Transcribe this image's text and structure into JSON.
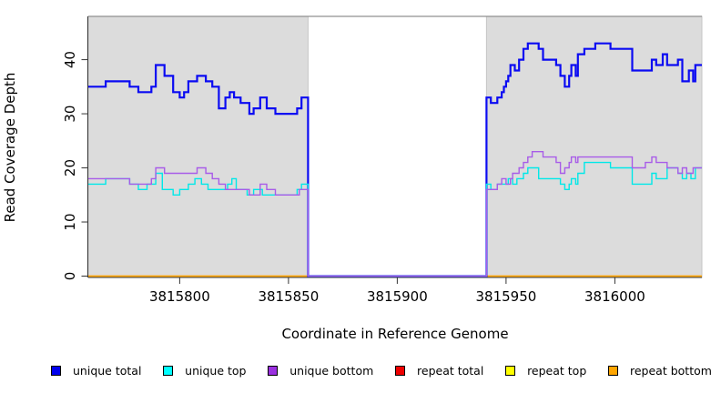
{
  "chart_data": {
    "type": "line",
    "subtype": "step-coverage-plot",
    "title": "",
    "xlabel": "Coordinate in Reference Genome",
    "ylabel": "Read Coverage Depth",
    "xlim": [
      3815758,
      3816040
    ],
    "ylim": [
      0,
      48
    ],
    "xticks": [
      3815800,
      3815850,
      3815900,
      3815950,
      3816000
    ],
    "yticks": [
      0,
      10,
      20,
      30,
      40
    ],
    "grid": false,
    "legend_position": "bottom",
    "shaded_regions": [
      {
        "x_from": 3815758,
        "x_to": 3815859,
        "color": "#DCDCDC"
      },
      {
        "x_from": 3815941,
        "x_to": 3816040,
        "color": "#DCDCDC"
      }
    ],
    "gap_region": {
      "x_from": 3815859,
      "x_to": 3815941,
      "coverage": 0
    },
    "series": [
      {
        "name": "repeat total",
        "color": "#EE0000",
        "line_width": 1.2,
        "points": [
          [
            3815758,
            0
          ],
          [
            3816040,
            0
          ]
        ]
      },
      {
        "name": "repeat top",
        "color": "#FFFF00",
        "line_width": 1.2,
        "points": [
          [
            3815758,
            0
          ],
          [
            3816040,
            0
          ]
        ]
      },
      {
        "name": "repeat bottom",
        "color": "#FFA500",
        "line_width": 1.5,
        "points": [
          [
            3815758,
            0
          ],
          [
            3816040,
            0
          ]
        ]
      },
      {
        "name": "unique total",
        "color": "#0B0BF2",
        "line_width": 2.2,
        "points": [
          [
            3815758,
            35
          ],
          [
            3815766,
            36
          ],
          [
            3815777,
            35
          ],
          [
            3815781,
            34
          ],
          [
            3815787,
            35
          ],
          [
            3815789,
            39
          ],
          [
            3815793,
            37
          ],
          [
            3815797,
            34
          ],
          [
            3815800,
            33
          ],
          [
            3815802,
            34
          ],
          [
            3815804,
            36
          ],
          [
            3815808,
            37
          ],
          [
            3815812,
            36
          ],
          [
            3815815,
            35
          ],
          [
            3815818,
            31
          ],
          [
            3815821,
            33
          ],
          [
            3815823,
            34
          ],
          [
            3815825,
            33
          ],
          [
            3815828,
            32
          ],
          [
            3815832,
            30
          ],
          [
            3815834,
            31
          ],
          [
            3815837,
            33
          ],
          [
            3815840,
            31
          ],
          [
            3815844,
            30
          ],
          [
            3815854,
            31
          ],
          [
            3815856,
            33
          ],
          [
            3815859,
            0
          ],
          [
            3815941,
            33
          ],
          [
            3815943,
            32
          ],
          [
            3815946,
            33
          ],
          [
            3815948,
            34
          ],
          [
            3815949,
            35
          ],
          [
            3815950,
            36
          ],
          [
            3815951,
            37
          ],
          [
            3815952,
            39
          ],
          [
            3815954,
            38
          ],
          [
            3815956,
            40
          ],
          [
            3815958,
            42
          ],
          [
            3815960,
            43
          ],
          [
            3815965,
            42
          ],
          [
            3815967,
            40
          ],
          [
            3815973,
            39
          ],
          [
            3815975,
            37
          ],
          [
            3815977,
            35
          ],
          [
            3815979,
            37
          ],
          [
            3815980,
            39
          ],
          [
            3815982,
            37
          ],
          [
            3815983,
            41
          ],
          [
            3815986,
            42
          ],
          [
            3815991,
            43
          ],
          [
            3815998,
            42
          ],
          [
            3816008,
            38
          ],
          [
            3816017,
            40
          ],
          [
            3816019,
            39
          ],
          [
            3816022,
            41
          ],
          [
            3816024,
            39
          ],
          [
            3816029,
            40
          ],
          [
            3816031,
            36
          ],
          [
            3816034,
            38
          ],
          [
            3816036,
            36
          ],
          [
            3816037,
            39
          ],
          [
            3816040,
            39
          ]
        ]
      },
      {
        "name": "unique top",
        "color": "#00E8E8",
        "line_width": 1.4,
        "points": [
          [
            3815758,
            17
          ],
          [
            3815766,
            18
          ],
          [
            3815777,
            17
          ],
          [
            3815781,
            16
          ],
          [
            3815785,
            17
          ],
          [
            3815789,
            19
          ],
          [
            3815792,
            16
          ],
          [
            3815797,
            15
          ],
          [
            3815800,
            16
          ],
          [
            3815804,
            17
          ],
          [
            3815807,
            18
          ],
          [
            3815810,
            17
          ],
          [
            3815813,
            16
          ],
          [
            3815818,
            16
          ],
          [
            3815822,
            17
          ],
          [
            3815824,
            18
          ],
          [
            3815826,
            16
          ],
          [
            3815831,
            15
          ],
          [
            3815834,
            16
          ],
          [
            3815838,
            15
          ],
          [
            3815854,
            16
          ],
          [
            3815856,
            17
          ],
          [
            3815859,
            0
          ],
          [
            3815941,
            17
          ],
          [
            3815943,
            16
          ],
          [
            3815946,
            17
          ],
          [
            3815951,
            18
          ],
          [
            3815953,
            17
          ],
          [
            3815955,
            18
          ],
          [
            3815958,
            19
          ],
          [
            3815960,
            20
          ],
          [
            3815965,
            18
          ],
          [
            3815975,
            17
          ],
          [
            3815977,
            16
          ],
          [
            3815979,
            17
          ],
          [
            3815980,
            18
          ],
          [
            3815982,
            17
          ],
          [
            3815983,
            19
          ],
          [
            3815986,
            21
          ],
          [
            3815998,
            20
          ],
          [
            3816008,
            17
          ],
          [
            3816017,
            19
          ],
          [
            3816019,
            18
          ],
          [
            3816024,
            20
          ],
          [
            3816029,
            19
          ],
          [
            3816031,
            18
          ],
          [
            3816033,
            19
          ],
          [
            3816035,
            18
          ],
          [
            3816037,
            20
          ],
          [
            3816040,
            20
          ]
        ]
      },
      {
        "name": "unique bottom",
        "color": "#A85CE8",
        "line_width": 1.4,
        "points": [
          [
            3815758,
            18
          ],
          [
            3815777,
            17
          ],
          [
            3815787,
            18
          ],
          [
            3815789,
            20
          ],
          [
            3815793,
            19
          ],
          [
            3815808,
            20
          ],
          [
            3815812,
            19
          ],
          [
            3815815,
            18
          ],
          [
            3815818,
            17
          ],
          [
            3815821,
            16
          ],
          [
            3815828,
            16
          ],
          [
            3815832,
            15
          ],
          [
            3815837,
            17
          ],
          [
            3815840,
            16
          ],
          [
            3815844,
            15
          ],
          [
            3815855,
            16
          ],
          [
            3815859,
            0
          ],
          [
            3815941,
            16
          ],
          [
            3815946,
            17
          ],
          [
            3815948,
            18
          ],
          [
            3815950,
            17
          ],
          [
            3815952,
            18
          ],
          [
            3815953,
            19
          ],
          [
            3815956,
            20
          ],
          [
            3815958,
            21
          ],
          [
            3815960,
            22
          ],
          [
            3815962,
            23
          ],
          [
            3815967,
            22
          ],
          [
            3815973,
            21
          ],
          [
            3815975,
            19
          ],
          [
            3815977,
            20
          ],
          [
            3815979,
            21
          ],
          [
            3815980,
            22
          ],
          [
            3815982,
            21
          ],
          [
            3815983,
            22
          ],
          [
            3816008,
            20
          ],
          [
            3816014,
            21
          ],
          [
            3816017,
            22
          ],
          [
            3816019,
            21
          ],
          [
            3816024,
            20
          ],
          [
            3816029,
            19
          ],
          [
            3816031,
            20
          ],
          [
            3816033,
            19
          ],
          [
            3816036,
            20
          ],
          [
            3816040,
            20
          ]
        ]
      }
    ],
    "legend": [
      {
        "label": "unique total",
        "color": "#0000EE"
      },
      {
        "label": "unique top",
        "color": "#00FFFF"
      },
      {
        "label": "unique bottom",
        "color": "#9B30E0"
      },
      {
        "label": "repeat total",
        "color": "#EE0000"
      },
      {
        "label": "repeat top",
        "color": "#FFFF00"
      },
      {
        "label": "repeat bottom",
        "color": "#FFA500"
      }
    ],
    "axis_color": "#333333",
    "plot_border_top_color": "#909090",
    "tick_label_font_px": 15
  }
}
